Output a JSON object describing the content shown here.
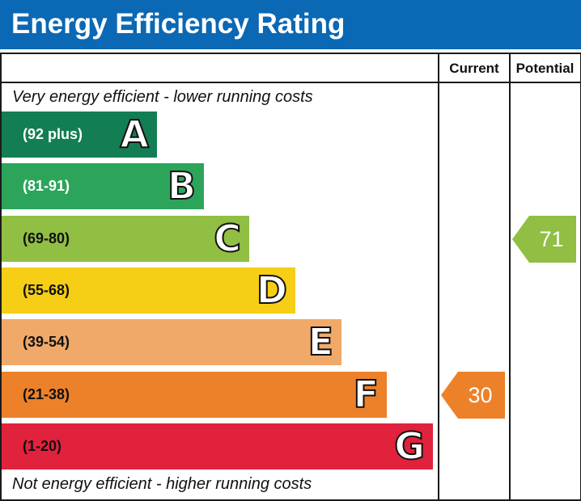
{
  "chart_data": {
    "type": "bar",
    "title": "Energy Efficiency Rating",
    "top_note": "Very energy efficient - lower running costs",
    "bottom_note": "Not energy efficient - higher running costs",
    "columns": {
      "current": "Current",
      "potential": "Potential"
    },
    "bands": [
      {
        "letter": "A",
        "range": "(92 plus)",
        "color": "#137e53",
        "text_color": "#ffffff"
      },
      {
        "letter": "B",
        "range": "(81-91)",
        "color": "#2ca55b",
        "text_color": "#ffffff"
      },
      {
        "letter": "C",
        "range": "(69-80)",
        "color": "#90bf43",
        "text_color": "#111111"
      },
      {
        "letter": "D",
        "range": "(55-68)",
        "color": "#f6ce16",
        "text_color": "#111111"
      },
      {
        "letter": "E",
        "range": "(39-54)",
        "color": "#f1a96a",
        "text_color": "#111111"
      },
      {
        "letter": "F",
        "range": "(21-38)",
        "color": "#ec812a",
        "text_color": "#111111"
      },
      {
        "letter": "G",
        "range": "(1-20)",
        "color": "#e1223d",
        "text_color": "#111111"
      }
    ],
    "current": {
      "value": 30,
      "band": "F",
      "color": "#ec812a"
    },
    "potential": {
      "value": 71,
      "band": "C",
      "color": "#90bf43"
    }
  }
}
